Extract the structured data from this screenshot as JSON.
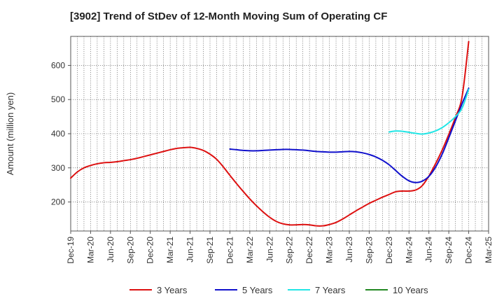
{
  "chart_data": {
    "type": "line",
    "title": "[3902]  Trend of StDev of 12-Month Moving Sum of Operating CF",
    "xlabel": "",
    "ylabel": "Amount (million yen)",
    "ylim": [
      115,
      685
    ],
    "yticks": [
      200,
      300,
      400,
      500,
      600
    ],
    "xlim": [
      "2019-12",
      "2025-03"
    ],
    "xticks": [
      "Dec-19",
      "Mar-20",
      "Jun-20",
      "Sep-20",
      "Dec-20",
      "Mar-21",
      "Jun-21",
      "Sep-21",
      "Dec-21",
      "Mar-22",
      "Jun-22",
      "Sep-22",
      "Dec-22",
      "Mar-23",
      "Jun-23",
      "Sep-23",
      "Dec-23",
      "Mar-24",
      "Jun-24",
      "Sep-24",
      "Dec-24",
      "Mar-25"
    ],
    "grid": true,
    "legend_position": "bottom",
    "series": [
      {
        "name": "3 Years",
        "color": "#dd1111",
        "x": [
          "2019-12",
          "2020-01",
          "2020-02",
          "2020-03",
          "2020-04",
          "2020-05",
          "2020-06",
          "2020-07",
          "2020-08",
          "2020-09",
          "2020-10",
          "2020-11",
          "2020-12",
          "2021-01",
          "2021-02",
          "2021-03",
          "2021-04",
          "2021-05",
          "2021-06",
          "2021-07",
          "2021-08",
          "2021-09",
          "2021-10",
          "2021-11",
          "2021-12",
          "2022-01",
          "2022-02",
          "2022-03",
          "2022-04",
          "2022-05",
          "2022-06",
          "2022-07",
          "2022-08",
          "2022-09",
          "2022-10",
          "2022-11",
          "2022-12",
          "2023-01",
          "2023-02",
          "2023-03",
          "2023-04",
          "2023-05",
          "2023-06",
          "2023-07",
          "2023-08",
          "2023-09",
          "2023-10",
          "2023-11",
          "2023-12",
          "2024-01",
          "2024-02",
          "2024-03",
          "2024-04",
          "2024-05",
          "2024-06",
          "2024-07",
          "2024-08",
          "2024-09",
          "2024-10",
          "2024-11",
          "2024-12"
        ],
        "values": [
          270,
          288,
          300,
          307,
          312,
          315,
          316,
          318,
          321,
          324,
          328,
          333,
          338,
          343,
          348,
          353,
          357,
          359,
          360,
          357,
          351,
          340,
          325,
          303,
          278,
          254,
          231,
          209,
          189,
          171,
          155,
          143,
          136,
          133,
          133,
          134,
          133,
          130,
          130,
          134,
          140,
          150,
          162,
          174,
          185,
          196,
          205,
          214,
          222,
          230,
          232,
          232,
          235,
          248,
          276,
          312,
          352,
          398,
          448,
          508,
          670
        ]
      },
      {
        "name": "5 Years",
        "color": "#1111cc",
        "x": [
          "2021-12",
          "2022-01",
          "2022-02",
          "2022-03",
          "2022-04",
          "2022-05",
          "2022-06",
          "2022-07",
          "2022-08",
          "2022-09",
          "2022-10",
          "2022-11",
          "2022-12",
          "2023-01",
          "2023-02",
          "2023-03",
          "2023-04",
          "2023-05",
          "2023-06",
          "2023-07",
          "2023-08",
          "2023-09",
          "2023-10",
          "2023-11",
          "2023-12",
          "2024-01",
          "2024-02",
          "2024-03",
          "2024-04",
          "2024-05",
          "2024-06",
          "2024-07",
          "2024-08",
          "2024-09",
          "2024-10",
          "2024-11",
          "2024-12"
        ],
        "values": [
          355,
          353,
          351,
          350,
          350,
          351,
          352,
          353,
          354,
          354,
          353,
          352,
          350,
          348,
          347,
          346,
          346,
          347,
          348,
          347,
          344,
          339,
          332,
          322,
          309,
          292,
          275,
          262,
          257,
          261,
          275,
          302,
          340,
          388,
          438,
          488,
          533
        ]
      },
      {
        "name": "7 Years",
        "color": "#22e5e5",
        "x": [
          "2023-12",
          "2024-01",
          "2024-02",
          "2024-03",
          "2024-04",
          "2024-05",
          "2024-06",
          "2024-07",
          "2024-08",
          "2024-09",
          "2024-10",
          "2024-11",
          "2024-12"
        ],
        "values": [
          405,
          408,
          407,
          404,
          401,
          399,
          402,
          408,
          418,
          432,
          450,
          475,
          530
        ]
      },
      {
        "name": "10 Years",
        "color": "#228822",
        "x": [],
        "values": []
      }
    ]
  }
}
